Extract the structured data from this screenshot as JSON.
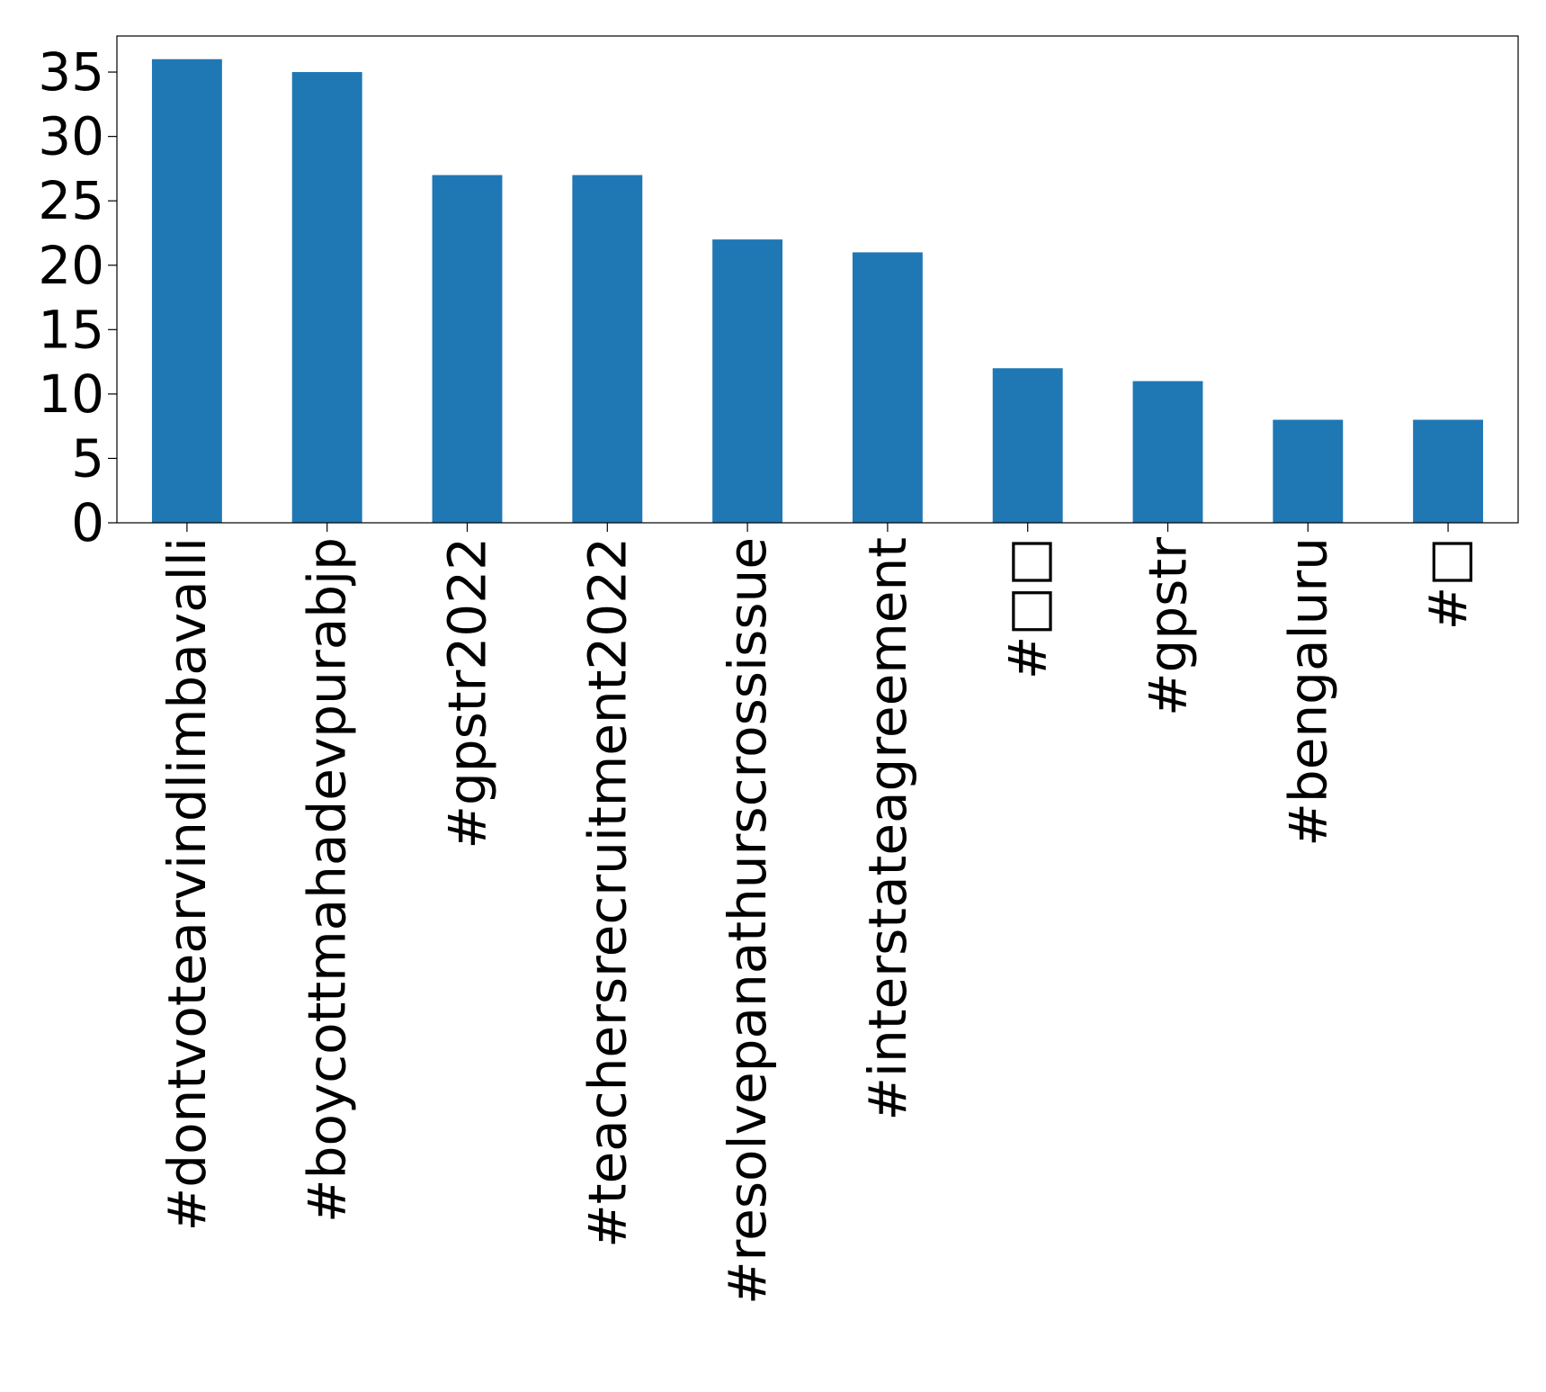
{
  "chart_data": {
    "type": "bar",
    "title": "",
    "xlabel": "",
    "ylabel": "",
    "categories": [
      "#dontvotearvindlimbavalli",
      "#boycottmahadevpurabjp",
      "#gpstr2022",
      "#teachersrecruitment2022",
      "#resolvepanathurscrossissue",
      "#interstateagreement",
      "#□□",
      "#gpstr",
      "#bengaluru",
      "#□"
    ],
    "values": [
      36,
      35,
      27,
      27,
      22,
      21,
      12,
      11,
      8,
      8
    ],
    "ylim": [
      0,
      37.8
    ],
    "yticks": [
      0,
      5,
      10,
      15,
      20,
      25,
      30,
      35
    ],
    "grid": false,
    "legend": "none",
    "bar_color": "#1f77b4"
  }
}
